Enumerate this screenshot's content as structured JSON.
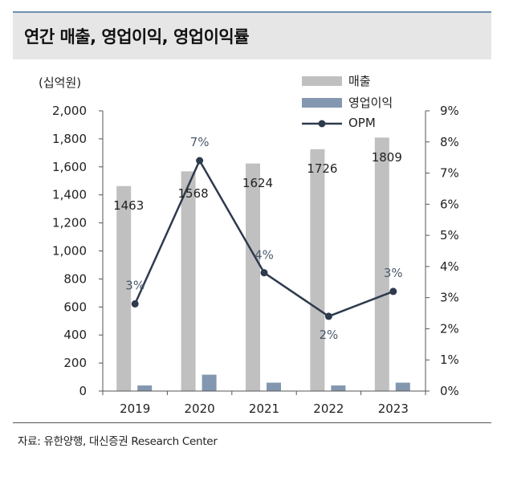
{
  "title": "연간 매출, 영업이익, 영업이익률",
  "unit": "(십억원)",
  "legend": {
    "revenue": "매출",
    "operating_profit": "영업이익",
    "opm": "OPM"
  },
  "source": "자료: 유한양행, 대신증권 Research Center",
  "colors": {
    "revenue_bar": "#c0c0c0",
    "op_bar": "#8497b0",
    "opm_line": "#2e3a4d",
    "title_band": "#e6e6e6"
  },
  "chart_data": {
    "type": "bar",
    "categories": [
      "2019",
      "2020",
      "2021",
      "2022",
      "2023"
    ],
    "series": [
      {
        "name": "매출",
        "axis": "left",
        "kind": "bar",
        "values": [
          1463,
          1568,
          1624,
          1726,
          1809
        ],
        "labels": [
          "1463",
          "1568",
          "1624",
          "1726",
          "1809"
        ]
      },
      {
        "name": "영업이익",
        "axis": "left",
        "kind": "bar",
        "values": [
          40,
          117,
          60,
          40,
          60
        ]
      },
      {
        "name": "OPM",
        "axis": "right",
        "kind": "line",
        "values": [
          2.8,
          7.4,
          3.8,
          2.4,
          3.2
        ],
        "labels": [
          "3%",
          "7%",
          "4%",
          "2%",
          "3%"
        ]
      }
    ],
    "ylim_left": [
      0,
      2000
    ],
    "yticks_left": [
      "0",
      "200",
      "400",
      "600",
      "800",
      "1,000",
      "1,200",
      "1,400",
      "1,600",
      "1,800",
      "2,000"
    ],
    "ylim_right": [
      0,
      9
    ],
    "yticks_right": [
      "0%",
      "1%",
      "2%",
      "3%",
      "4%",
      "5%",
      "6%",
      "7%",
      "8%",
      "9%"
    ],
    "ylabel": "(십억원)",
    "legend_position": "top-right",
    "grid": false
  }
}
